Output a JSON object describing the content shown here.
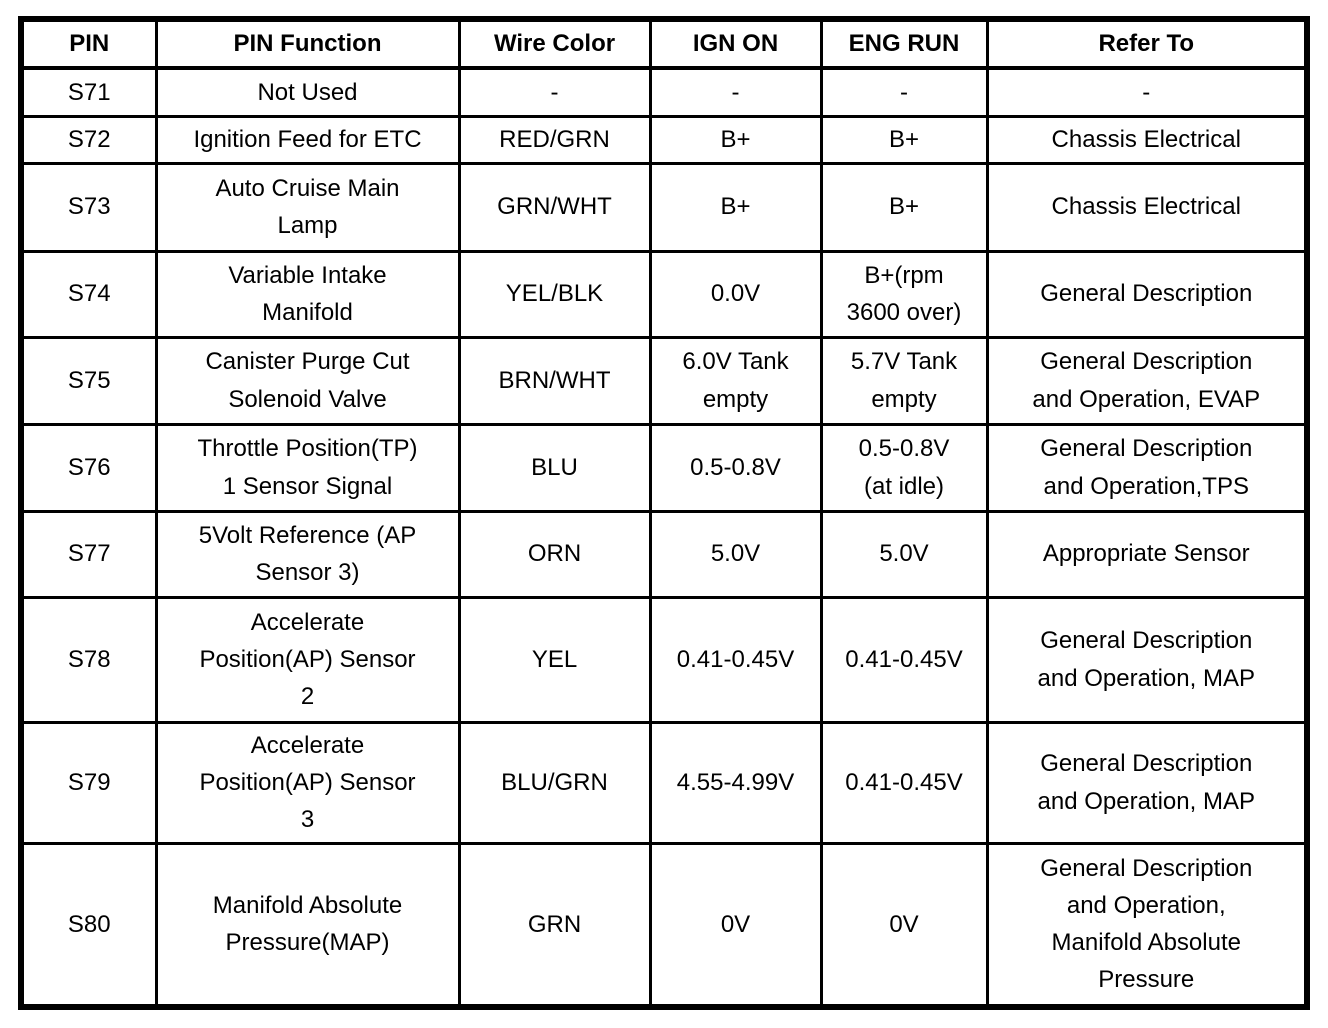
{
  "document": {
    "kind": "scanned connector pin-function table"
  },
  "colors": {
    "border": "#000000",
    "text": "#000000",
    "background": "#ffffff"
  },
  "table": {
    "columns": [
      "PIN",
      "PIN Function",
      "Wire Color",
      "IGN ON",
      "ENG RUN",
      "Refer To"
    ],
    "column_keys": [
      "pin",
      "pin-function",
      "wire-color",
      "ign-on",
      "eng-run",
      "refer-to"
    ],
    "rows": [
      {
        "cells": [
          "S71",
          "Not Used",
          "-",
          "-",
          "-",
          "-"
        ]
      },
      {
        "cells": [
          "S72",
          "Ignition Feed for ETC",
          "RED/GRN",
          "B+",
          "B+",
          "Chassis Electrical"
        ]
      },
      {
        "cells": [
          "S73",
          "Auto Cruise Main\nLamp",
          "GRN/WHT",
          "B+",
          "B+",
          "Chassis Electrical"
        ]
      },
      {
        "cells": [
          "S74",
          "Variable Intake\nManifold",
          "YEL/BLK",
          "0.0V",
          "B+(rpm\n3600 over)",
          "General Description"
        ]
      },
      {
        "cells": [
          "S75",
          "Canister Purge Cut\nSolenoid Valve",
          "BRN/WHT",
          "6.0V Tank\nempty",
          "5.7V Tank\nempty",
          "General Description\nand Operation, EVAP"
        ]
      },
      {
        "cells": [
          "S76",
          "Throttle Position(TP)\n1 Sensor Signal",
          "BLU",
          "0.5-0.8V",
          "0.5-0.8V\n(at idle)",
          "General Description\nand Operation,TPS"
        ]
      },
      {
        "cells": [
          "S77",
          "5Volt Reference (AP\nSensor 3)",
          "ORN",
          "5.0V",
          "5.0V",
          "Appropriate Sensor"
        ]
      },
      {
        "cells": [
          "S78",
          "Accelerate\nPosition(AP) Sensor\n2",
          "YEL",
          "0.41-0.45V",
          "0.41-0.45V",
          "General Description\nand Operation, MAP"
        ]
      },
      {
        "cells": [
          "S79",
          "Accelerate\nPosition(AP) Sensor\n3",
          "BLU/GRN",
          "4.55-4.99V",
          "0.41-0.45V",
          "General Description\nand Operation, MAP"
        ]
      },
      {
        "cells": [
          "S80",
          "Manifold Absolute\nPressure(MAP)",
          "GRN",
          "0V",
          "0V",
          "General Description\nand Operation,\nManifold Absolute\nPressure"
        ]
      }
    ]
  }
}
